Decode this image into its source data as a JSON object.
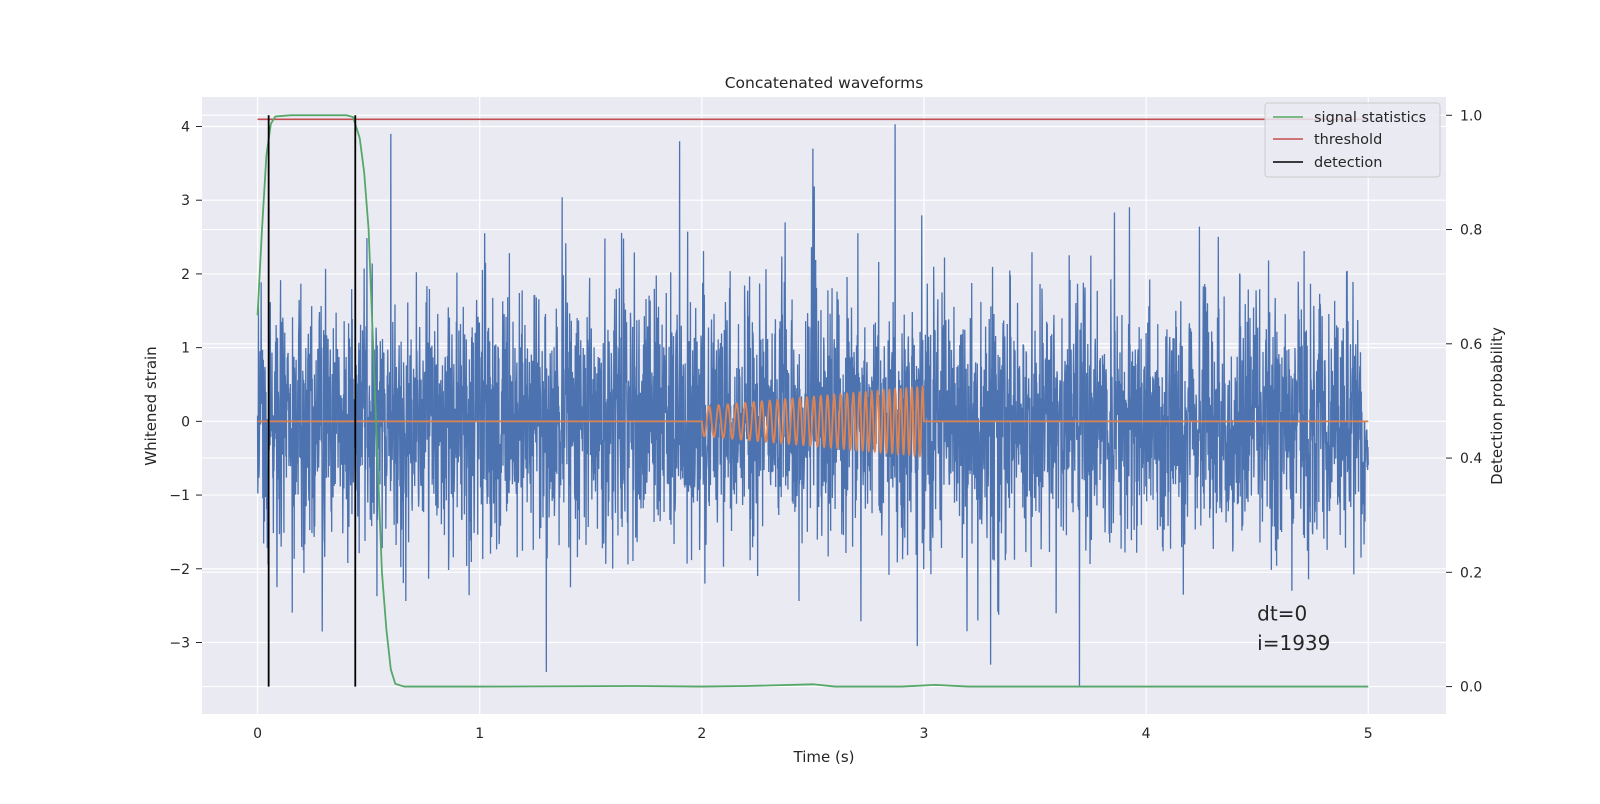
{
  "chart_data": {
    "type": "line",
    "title": "Concatenated waveforms",
    "xlabel": "Time (s)",
    "ylabel": "Whitened strain",
    "y2label": "Detection probability",
    "xlim": [
      -0.25,
      5.35
    ],
    "ylim": [
      -3.97,
      4.4
    ],
    "y2lim": [
      -0.048,
      1.032
    ],
    "xticks": [
      0,
      1,
      2,
      3,
      4,
      5
    ],
    "yticks": [
      -3,
      -2,
      -1,
      0,
      1,
      2,
      3,
      4
    ],
    "y2ticks": [
      0.0,
      0.2,
      0.4,
      0.6,
      0.8,
      1.0
    ],
    "y2tick_labels": [
      "0.0",
      "0.2",
      "0.4",
      "0.6",
      "0.8",
      "1.0"
    ],
    "grid": true,
    "legend_position": "top-right",
    "legend": [
      {
        "label": "signal statistics",
        "color": "#55a868"
      },
      {
        "label": "threshold",
        "color": "#c44e52"
      },
      {
        "label": "detection",
        "color": "#000000"
      }
    ],
    "series": [
      {
        "role": "noise strain",
        "axis": "left",
        "color": "#4c72b0",
        "x_range": [
          0,
          5
        ],
        "typical_amplitude": 1.0,
        "notable_peaks": [
          {
            "x": 0.6,
            "y": 3.9
          },
          {
            "x": 1.9,
            "y": 3.8
          },
          {
            "x": 2.87,
            "y": 4.03
          },
          {
            "x": 2.5,
            "y": 3.7
          },
          {
            "x": 1.3,
            "y": -3.4
          },
          {
            "x": 3.3,
            "y": -3.3
          },
          {
            "x": 3.7,
            "y": -3.6
          },
          {
            "x": 2.97,
            "y": -3.05
          }
        ]
      },
      {
        "role": "injected waveform",
        "axis": "left",
        "color": "#dd8452",
        "x_range": [
          0,
          5
        ],
        "chirp_range": [
          2.0,
          3.0
        ],
        "chirp_start_amplitude": 0.2,
        "chirp_end_amplitude": 0.47,
        "cycles": 32
      },
      {
        "name": "signal statistics",
        "axis": "right",
        "color": "#55a868",
        "x": [
          0.0,
          0.02,
          0.04,
          0.06,
          0.08,
          0.15,
          0.3,
          0.4,
          0.43,
          0.46,
          0.48,
          0.5,
          0.52,
          0.54,
          0.56,
          0.58,
          0.6,
          0.62,
          0.66,
          1.0,
          1.7,
          2.0,
          2.2,
          2.5,
          2.6,
          2.9,
          3.05,
          3.2,
          4.0,
          5.0
        ],
        "y": [
          0.65,
          0.8,
          0.93,
          0.985,
          0.998,
          1.0,
          1.0,
          1.0,
          0.997,
          0.96,
          0.9,
          0.8,
          0.6,
          0.4,
          0.2,
          0.1,
          0.03,
          0.005,
          0.0,
          0.0,
          0.001,
          0.0,
          0.001,
          0.004,
          0.0,
          0.0,
          0.003,
          0.0,
          0.0,
          0.0
        ]
      },
      {
        "name": "threshold",
        "axis": "right",
        "color": "#c44e52",
        "x": [
          0,
          5
        ],
        "y": [
          0.993,
          0.993
        ]
      },
      {
        "name": "detection",
        "axis": "right",
        "color": "#000000",
        "segments_x": [
          0.05,
          0.44
        ],
        "y_range": [
          0.0,
          1.0
        ]
      }
    ],
    "annotations": [
      {
        "text": "dt=0",
        "x": 4.5,
        "y": -2.7
      },
      {
        "text": "i=1939",
        "x": 4.5,
        "y": -3.1
      }
    ]
  }
}
